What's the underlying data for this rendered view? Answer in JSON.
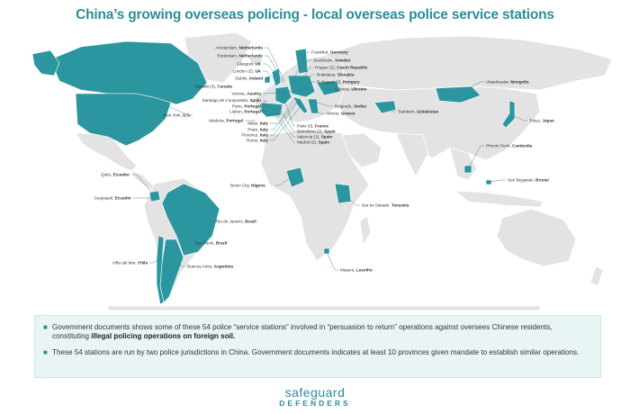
{
  "title": "China’s growing overseas policing - local overseas police service stations",
  "colors": {
    "accent": "#2c96a0",
    "land": "#e3e3e3",
    "title": "#2c8e9a"
  },
  "highlighted_countries": [
    "Canada",
    "U.S.",
    "Ecuador",
    "Brazil",
    "Chile",
    "Argentina",
    "Netherlands",
    "UK",
    "Ireland",
    "Germany",
    "Sweden",
    "Czech Republic",
    "Slovakia",
    "Hungary",
    "Ukraine",
    "Austria",
    "Spain",
    "Portugal",
    "France",
    "Italy",
    "Serbia",
    "Greece",
    "Uzbekistan",
    "Mongolia",
    "Japan",
    "Cambodia",
    "Brunei",
    "Nigeria",
    "Tanzania",
    "Lesotho"
  ],
  "labels": {
    "amsterdam": {
      "city": "Amsterdam,",
      "country": "Netherlands"
    },
    "rotterdam": {
      "city": "Rotterdam,",
      "country": "Netherlands"
    },
    "glasgow": {
      "city": "Glasgow,",
      "country": "UK"
    },
    "london": {
      "city": "London (2),",
      "country": "UK"
    },
    "dublin": {
      "city": "Dublin,",
      "country": "Ireland"
    },
    "toronto": {
      "city": "Toronto (3),",
      "country": "Canada"
    },
    "vienna": {
      "city": "Vienna,",
      "country": "Austria"
    },
    "santiago": {
      "city": "Santiago de Compostela,",
      "country": "Spain"
    },
    "porto1": {
      "city": "Porto,",
      "country": "Portugal"
    },
    "lisbon": {
      "city": "Lisbon,",
      "country": "Portugal"
    },
    "newyork": {
      "city": "New York,",
      "country": "U.S."
    },
    "madeira": {
      "city": "Madeira,",
      "country": "Portugal"
    },
    "milan": {
      "city": "Milan,",
      "country": "Italy"
    },
    "prato": {
      "city": "Prato,",
      "country": "Italy"
    },
    "florence": {
      "city": "Florence,",
      "country": "Italy"
    },
    "rome": {
      "city": "Rome,",
      "country": "Italy"
    },
    "frankfurt": {
      "city": "Frankfurt,",
      "country": "Germany"
    },
    "stockholm": {
      "city": "Stockholm,",
      "country": "Sweden"
    },
    "prague": {
      "city": "Prague (2),",
      "country": "Czech Republic"
    },
    "bratislava": {
      "city": "Bratislava,",
      "country": "Slovakia"
    },
    "budapest": {
      "city": "Budapest (2),",
      "country": "Hungary"
    },
    "odessa": {
      "city": "Odessa,",
      "country": "Ukraine"
    },
    "belgrade": {
      "city": "Belgrade,",
      "country": "Serbia"
    },
    "athens": {
      "city": "Athens,",
      "country": "Greece"
    },
    "paris": {
      "city": "Paris (3),",
      "country": "France"
    },
    "barcelona": {
      "city": "Barcelona (2),",
      "country": "Spain"
    },
    "valencia": {
      "city": "Valencia (2),",
      "country": "Spain"
    },
    "madrid": {
      "city": "Madrid (2),",
      "country": "Spain"
    },
    "tashkent": {
      "city": "Tashkent,",
      "country": "Uzbekistan"
    },
    "ulaanbaatar": {
      "city": "Ulaanbaatar,",
      "country": "Mongolia"
    },
    "tokyo": {
      "city": "Tokyo,",
      "country": "Japan"
    },
    "quito": {
      "city": "Quito,",
      "country": "Ecuador"
    },
    "guayaquil": {
      "city": "Guayaquil,",
      "country": "Ecuador"
    },
    "rio": {
      "city": "Rio de Janeiro,",
      "country": "Brazil"
    },
    "saopaulo": {
      "city": "Sao Paulo,",
      "country": "Brazil"
    },
    "vina": {
      "city": "Viña del Mar,",
      "country": "Chile"
    },
    "buenosaires": {
      "city": "Buenos Aires,",
      "country": "Argentina"
    },
    "benin": {
      "city": "Benin City,",
      "country": "Nigeria"
    },
    "daressalaam": {
      "city": "Dar es Salaam,",
      "country": "Tanzania"
    },
    "maseru": {
      "city": "Maseru,",
      "country": "Lesotho"
    },
    "phnompenh": {
      "city": "Phnom Penh,",
      "country": "Cambodia"
    },
    "seribegawan": {
      "city": "Seri Begawan,",
      "country": "Brunei"
    }
  },
  "notes": {
    "bullet": "■",
    "n1_a": "Government documents shows some of these 54 police “service stations” involved in “persuasion to return” operations against oversees Chinese residents, constituting ",
    "n1_b": "illegal policing operations on foreign soil.",
    "n2": "These 54 stations are run by two police jurisdictions in China. Government documents indicates at least 10 provinces given mandate to establish similar operations."
  },
  "logo": {
    "line1": "safeguard",
    "line2": "DEFENDERS"
  }
}
